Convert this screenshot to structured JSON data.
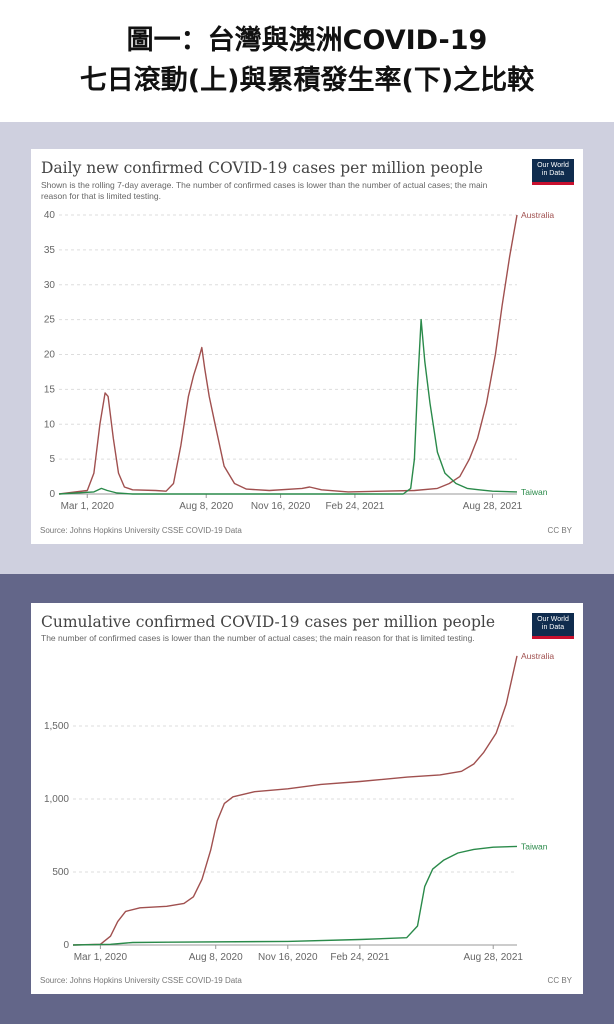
{
  "header": {
    "line1": "圖一：台灣與澳洲COVID-19",
    "line2": "七日滾動(上)與累積發生率(下)之比較"
  },
  "colors": {
    "australia": "#a0504f",
    "taiwan": "#2a8a4a",
    "top_band": "#cfd0df",
    "bottom_band": "#636689",
    "logo_bg": "#0f2c4e",
    "logo_bar": "#c8102e"
  },
  "charts": [
    {
      "title": "Daily new confirmed COVID-19 cases per million people",
      "subtitle": "Shown is the rolling 7-day average. The number of confirmed cases is lower than the number of actual cases; the main reason for that is limited testing.",
      "logo_line1": "Our World",
      "logo_line2": "in Data",
      "source": "Source: Johns Hopkins University CSSE COVID-19 Data",
      "license": "CC BY"
    },
    {
      "title": "Cumulative confirmed COVID-19 cases per million people",
      "subtitle": "The number of confirmed cases is lower than the number of actual cases; the main reason for that is limited testing.",
      "logo_line1": "Our World",
      "logo_line2": "in Data",
      "source": "Source: Johns Hopkins University CSSE COVID-19 Data",
      "license": "CC BY"
    }
  ],
  "chart_data": [
    {
      "type": "line",
      "title": "Daily new confirmed COVID-19 cases per million people",
      "x_ticks": [
        "Mar 1, 2020",
        "Aug 8, 2020",
        "Nov 16, 2020",
        "Feb 24, 2021",
        "Aug 28, 2021"
      ],
      "x_range": [
        "2020-01-23",
        "2021-09-30"
      ],
      "y_ticks": [
        "0",
        "5",
        "10",
        "15",
        "20",
        "25",
        "30",
        "35",
        "40"
      ],
      "ylim": [
        0,
        40
      ],
      "grid": "horizontal dashed",
      "series": [
        {
          "name": "Australia",
          "points": [
            [
              "2020-01-23",
              0
            ],
            [
              "2020-03-01",
              0.5
            ],
            [
              "2020-03-10",
              3
            ],
            [
              "2020-03-18",
              10
            ],
            [
              "2020-03-25",
              14.5
            ],
            [
              "2020-03-29",
              14
            ],
            [
              "2020-04-05",
              8
            ],
            [
              "2020-04-12",
              3
            ],
            [
              "2020-04-20",
              1
            ],
            [
              "2020-05-01",
              0.6
            ],
            [
              "2020-06-01",
              0.5
            ],
            [
              "2020-06-15",
              0.4
            ],
            [
              "2020-06-25",
              1.5
            ],
            [
              "2020-07-05",
              7
            ],
            [
              "2020-07-15",
              14
            ],
            [
              "2020-07-22",
              17
            ],
            [
              "2020-07-28",
              19
            ],
            [
              "2020-08-02",
              21
            ],
            [
              "2020-08-06",
              18
            ],
            [
              "2020-08-12",
              14
            ],
            [
              "2020-08-20",
              10
            ],
            [
              "2020-09-01",
              4
            ],
            [
              "2020-09-15",
              1.5
            ],
            [
              "2020-10-01",
              0.7
            ],
            [
              "2020-11-01",
              0.5
            ],
            [
              "2020-12-15",
              0.8
            ],
            [
              "2020-12-25",
              1
            ],
            [
              "2021-01-10",
              0.6
            ],
            [
              "2021-02-15",
              0.3
            ],
            [
              "2021-04-01",
              0.4
            ],
            [
              "2021-05-15",
              0.5
            ],
            [
              "2021-06-15",
              0.8
            ],
            [
              "2021-07-01",
              1.5
            ],
            [
              "2021-07-15",
              2.5
            ],
            [
              "2021-07-28",
              5
            ],
            [
              "2021-08-08",
              8
            ],
            [
              "2021-08-20",
              13
            ],
            [
              "2021-09-01",
              20
            ],
            [
              "2021-09-10",
              27
            ],
            [
              "2021-09-20",
              34
            ],
            [
              "2021-09-30",
              40
            ]
          ]
        },
        {
          "name": "Taiwan",
          "points": [
            [
              "2020-01-23",
              0
            ],
            [
              "2020-03-10",
              0.3
            ],
            [
              "2020-03-20",
              0.8
            ],
            [
              "2020-03-28",
              0.5
            ],
            [
              "2020-04-10",
              0.15
            ],
            [
              "2020-05-01",
              0
            ],
            [
              "2021-04-30",
              0
            ],
            [
              "2021-05-10",
              0.8
            ],
            [
              "2021-05-15",
              5
            ],
            [
              "2021-05-19",
              15
            ],
            [
              "2021-05-24",
              25
            ],
            [
              "2021-05-29",
              19
            ],
            [
              "2021-06-05",
              13
            ],
            [
              "2021-06-15",
              6
            ],
            [
              "2021-06-25",
              3
            ],
            [
              "2021-07-10",
              1.5
            ],
            [
              "2021-07-25",
              0.8
            ],
            [
              "2021-08-10",
              0.6
            ],
            [
              "2021-08-28",
              0.4
            ],
            [
              "2021-09-30",
              0.3
            ]
          ]
        }
      ]
    },
    {
      "type": "line",
      "title": "Cumulative confirmed COVID-19 cases per million people",
      "x_ticks": [
        "Mar 1, 2020",
        "Aug 8, 2020",
        "Nov 16, 2020",
        "Feb 24, 2021",
        "Aug 28, 2021"
      ],
      "x_range": [
        "2020-01-23",
        "2021-09-30"
      ],
      "y_ticks": [
        "0",
        "500",
        "1,000",
        "1,500"
      ],
      "ylim": [
        0,
        2000
      ],
      "grid": "horizontal dashed",
      "series": [
        {
          "name": "Australia",
          "points": [
            [
              "2020-01-23",
              0
            ],
            [
              "2020-03-01",
              5
            ],
            [
              "2020-03-15",
              60
            ],
            [
              "2020-03-25",
              160
            ],
            [
              "2020-04-05",
              230
            ],
            [
              "2020-04-25",
              255
            ],
            [
              "2020-06-01",
              265
            ],
            [
              "2020-06-25",
              285
            ],
            [
              "2020-07-08",
              330
            ],
            [
              "2020-07-20",
              450
            ],
            [
              "2020-08-01",
              650
            ],
            [
              "2020-08-10",
              850
            ],
            [
              "2020-08-20",
              970
            ],
            [
              "2020-09-01",
              1015
            ],
            [
              "2020-10-01",
              1050
            ],
            [
              "2020-11-16",
              1070
            ],
            [
              "2021-01-01",
              1100
            ],
            [
              "2021-02-24",
              1120
            ],
            [
              "2021-05-01",
              1150
            ],
            [
              "2021-06-15",
              1165
            ],
            [
              "2021-07-15",
              1190
            ],
            [
              "2021-08-01",
              1240
            ],
            [
              "2021-08-15",
              1320
            ],
            [
              "2021-09-01",
              1450
            ],
            [
              "2021-09-15",
              1650
            ],
            [
              "2021-09-30",
              1980
            ]
          ]
        },
        {
          "name": "Taiwan",
          "points": [
            [
              "2020-01-23",
              0
            ],
            [
              "2020-03-15",
              5
            ],
            [
              "2020-04-15",
              17
            ],
            [
              "2020-06-01",
              19
            ],
            [
              "2020-11-16",
              25
            ],
            [
              "2021-02-24",
              38
            ],
            [
              "2021-04-30",
              50
            ],
            [
              "2021-05-15",
              130
            ],
            [
              "2021-05-25",
              400
            ],
            [
              "2021-06-05",
              520
            ],
            [
              "2021-06-20",
              580
            ],
            [
              "2021-07-10",
              630
            ],
            [
              "2021-08-01",
              655
            ],
            [
              "2021-08-28",
              670
            ],
            [
              "2021-09-30",
              675
            ]
          ]
        }
      ]
    }
  ]
}
